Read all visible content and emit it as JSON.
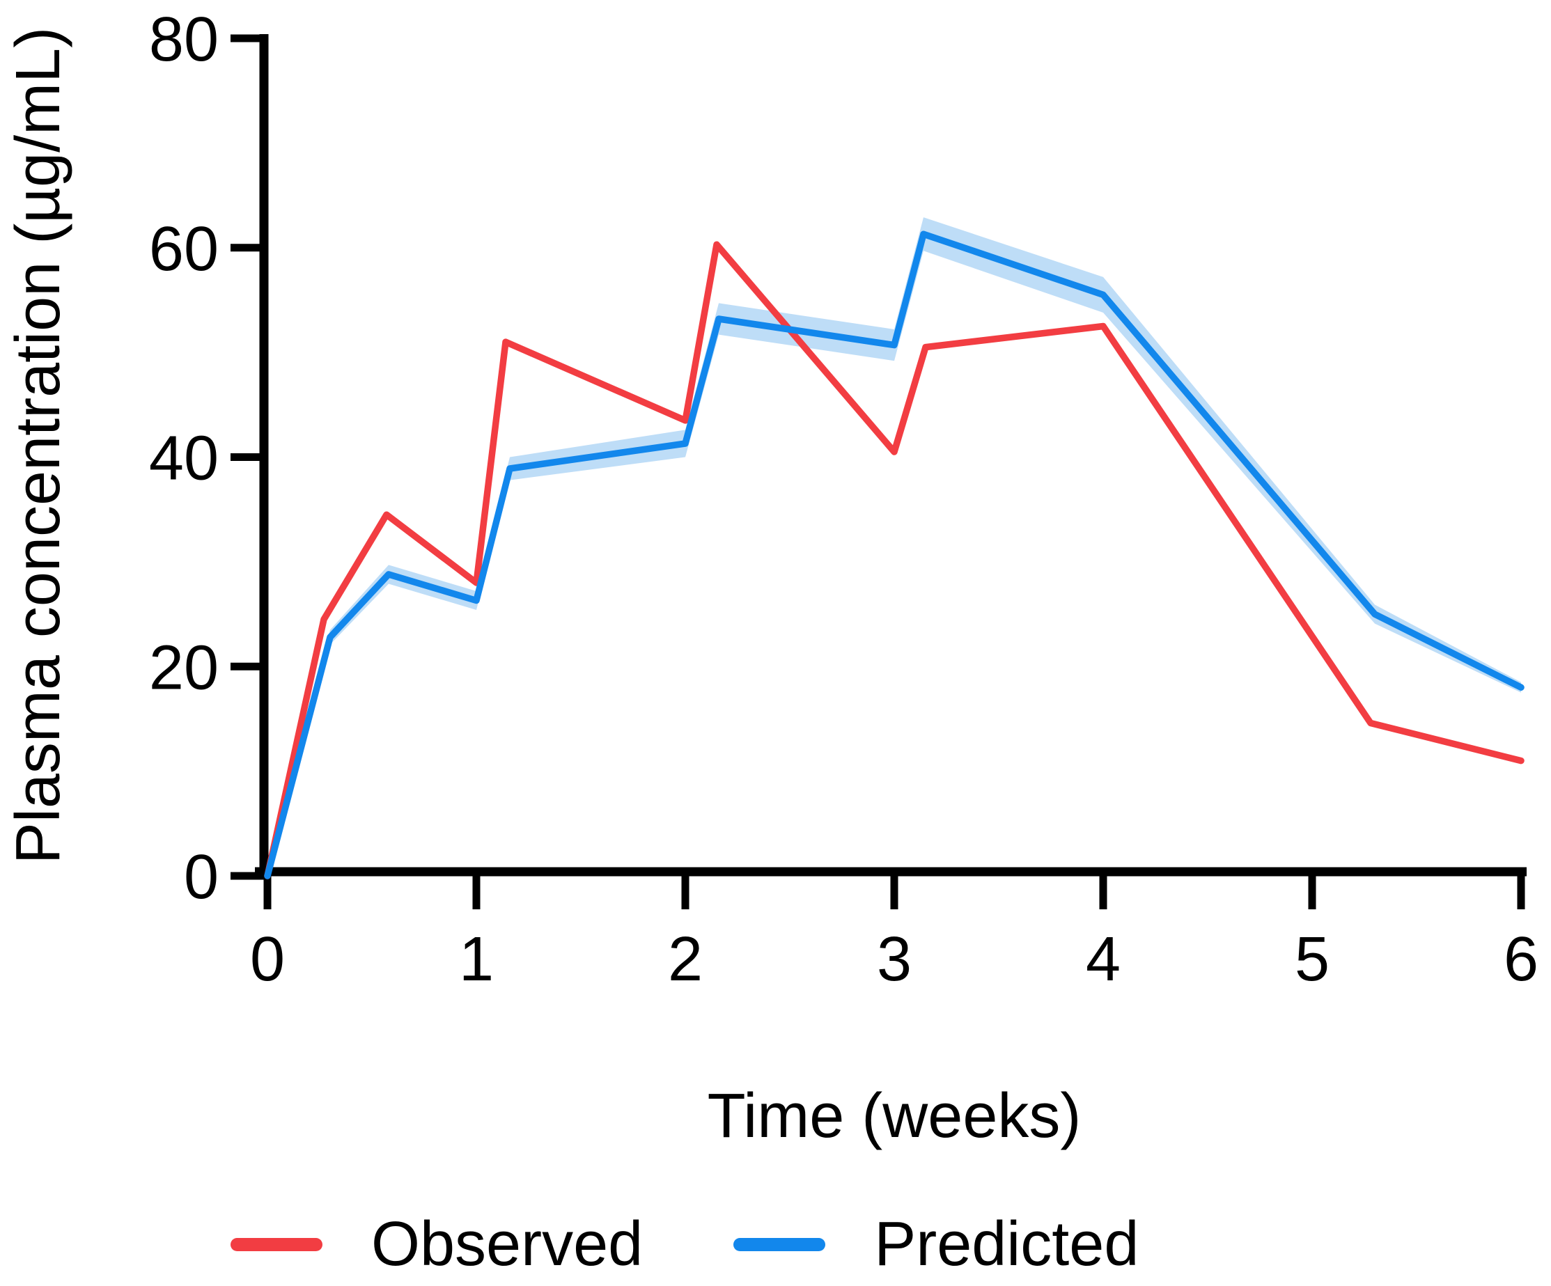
{
  "chart_data": {
    "type": "line",
    "title": "",
    "xlabel": "Time (weeks)",
    "ylabel": "Plasma concentration (µg/mL)",
    "xlim": [
      0,
      6
    ],
    "ylim": [
      0,
      80
    ],
    "x_ticks": [
      "0",
      "1",
      "2",
      "3",
      "4",
      "5",
      "6"
    ],
    "y_ticks": [
      "0",
      "20",
      "40",
      "60",
      "80"
    ],
    "grid": false,
    "legend_position": "bottom-left",
    "axis_color": "#000000",
    "background_color": "#ffffff",
    "series": [
      {
        "name": "Observed",
        "color": "#F23D42",
        "points": [
          [
            0,
            0
          ],
          [
            0.27,
            24.5
          ],
          [
            0.57,
            34.5
          ],
          [
            1.0,
            28.0
          ],
          [
            1.14,
            51.0
          ],
          [
            2.0,
            43.5
          ],
          [
            2.15,
            60.3
          ],
          [
            3.0,
            40.5
          ],
          [
            3.15,
            50.5
          ],
          [
            4.0,
            52.5
          ],
          [
            5.28,
            14.6
          ],
          [
            6.0,
            11.0
          ]
        ]
      },
      {
        "name": "Predicted",
        "color": "#1287EC",
        "ci_band": {
          "color": "#BEDDF7",
          "half_widths": [
            0.2,
            0.7,
            0.9,
            0.9,
            1.1,
            1.3,
            1.5,
            1.5,
            1.6,
            1.7,
            0.9,
            0.5
          ]
        },
        "points": [
          [
            0,
            0
          ],
          [
            0.3,
            22.8
          ],
          [
            0.58,
            28.8
          ],
          [
            1.0,
            26.3
          ],
          [
            1.16,
            38.9
          ],
          [
            2.0,
            41.3
          ],
          [
            2.16,
            53.2
          ],
          [
            3.0,
            50.7
          ],
          [
            3.14,
            61.3
          ],
          [
            4.0,
            55.5
          ],
          [
            5.3,
            25.0
          ],
          [
            6.0,
            18.0
          ]
        ]
      }
    ]
  }
}
